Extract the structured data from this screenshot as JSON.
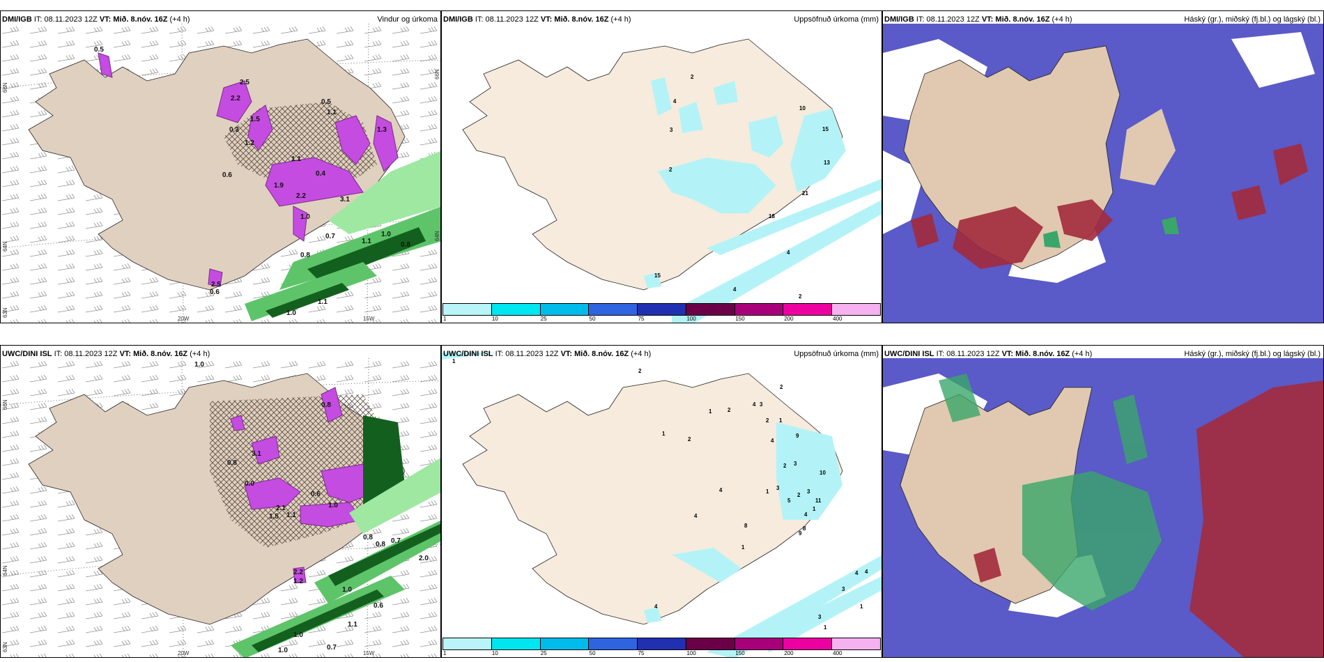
{
  "panels": [
    {
      "id": "p1",
      "model": "DMI/IGB",
      "it_label": "IT:",
      "it_value": "08.11.2023 12Z",
      "vt_label": "VT:",
      "vt_value": "Mið. 8.nóv. 16Z",
      "lead": "(+4 h)",
      "title": "Vindur og úrkoma"
    },
    {
      "id": "p2",
      "model": "DMI/IGB",
      "it_label": "IT:",
      "it_value": "08.11.2023 12Z",
      "vt_label": "VT:",
      "vt_value": "Mið. 8.nóv. 16Z",
      "lead": "(+4 h)",
      "title": "Uppsöfnuð úrkoma (mm)"
    },
    {
      "id": "p3",
      "model": "DMI/IGB",
      "it_label": "IT:",
      "it_value": "08.11.2023 12Z",
      "vt_label": "VT:",
      "vt_value": "Mið. 8.nóv. 16Z",
      "lead": "(+4 h)",
      "title": "Háský (gr.), miðský (fj.bl.) og lágský (bl.)"
    },
    {
      "id": "p4",
      "model": "UWC/DINI ISL",
      "it_label": "IT:",
      "it_value": "08.11.2023 12Z",
      "vt_label": "VT:",
      "vt_value": "Mið. 8.nóv. 16Z",
      "lead": "(+4 h)",
      "title": ""
    },
    {
      "id": "p5",
      "model": "UWC/DINI ISL",
      "it_label": "IT:",
      "it_value": "08.11.2023 12Z",
      "vt_label": "VT:",
      "vt_value": "Mið. 8.nóv. 16Z",
      "lead": "(+4 h)",
      "title": "Uppsöfnuð úrkoma (mm)"
    },
    {
      "id": "p6",
      "model": "UWC/DINI ISL",
      "it_label": "IT:",
      "it_value": "08.11.2023 12Z",
      "vt_label": "VT:",
      "vt_value": "Mið. 8.nóv. 16Z",
      "lead": "(+4 h)",
      "title": "Háský (gr.), miðský (fj.bl.) og lágský (bl.)"
    }
  ],
  "axes": {
    "lat66": "66N",
    "lat64": "64N",
    "lon20": "20W",
    "lon15": "15W",
    "lat63": "63N",
    "lat65": "65N"
  },
  "colorbar": {
    "ticks": [
      "1",
      "10",
      "25",
      "50",
      "75",
      "100",
      "150",
      "200",
      "400"
    ],
    "colors": [
      "#b8f4f8",
      "#00e6f0",
      "#00bcec",
      "#2f64e0",
      "#2030b0",
      "#6c0048",
      "#a8007a",
      "#ec00a0",
      "#f6b2f0"
    ]
  },
  "colors": {
    "land": "#f6ebdc",
    "land_p1": "#e0d0bf",
    "precip": "#c44ce0",
    "precip_dark": "#7a2a8c",
    "wind_green": "#5ec46a",
    "wind_dark": "#13601e",
    "accum": "#b3f3f7",
    "high_cloud": "#3aa66a",
    "mid_cloud": "#8a1838",
    "low_cloud": "#4c4cc8",
    "low_cloud_edge": "#5aa6ff"
  },
  "p1_labels": [
    "0.5",
    "2.2",
    "0.3",
    "1.5",
    "2.5",
    "0.5",
    "1.1",
    "1.1",
    "0.6",
    "0.4",
    "1.3",
    "1.9",
    "3.1",
    "1.0",
    "2.2",
    "0.7",
    "1.1",
    "1.0",
    "0.8",
    "2.5",
    "0.6",
    "1.0",
    "1.1",
    "1.2",
    "0.8"
  ],
  "p4_labels": [
    "1.0",
    "0.8",
    "3.1",
    "0.8",
    "0.0",
    "2.1",
    "1.5",
    "1.1",
    "0.6",
    "1.0",
    "0.8",
    "0.8",
    "0.7",
    "2.2",
    "1.2",
    "1.0",
    "2.0",
    "1.1",
    "0.6",
    "1.0",
    "0.7",
    "1.0"
  ],
  "p2_points": [
    "2",
    "4",
    "3",
    "2",
    "10",
    "15",
    "13",
    "21",
    "18",
    "4",
    "4",
    "15",
    "2"
  ],
  "p5_points": [
    "1",
    "2",
    "4",
    "3",
    "2",
    "1",
    "1",
    "2",
    "2",
    "1",
    "4",
    "9",
    "2",
    "3",
    "1",
    "3",
    "5",
    "4",
    "2",
    "10",
    "3",
    "11",
    "1",
    "8",
    "9",
    "4",
    "1",
    "8",
    "4",
    "4",
    "4",
    "4",
    "3",
    "1",
    "3",
    "1",
    "2"
  ]
}
